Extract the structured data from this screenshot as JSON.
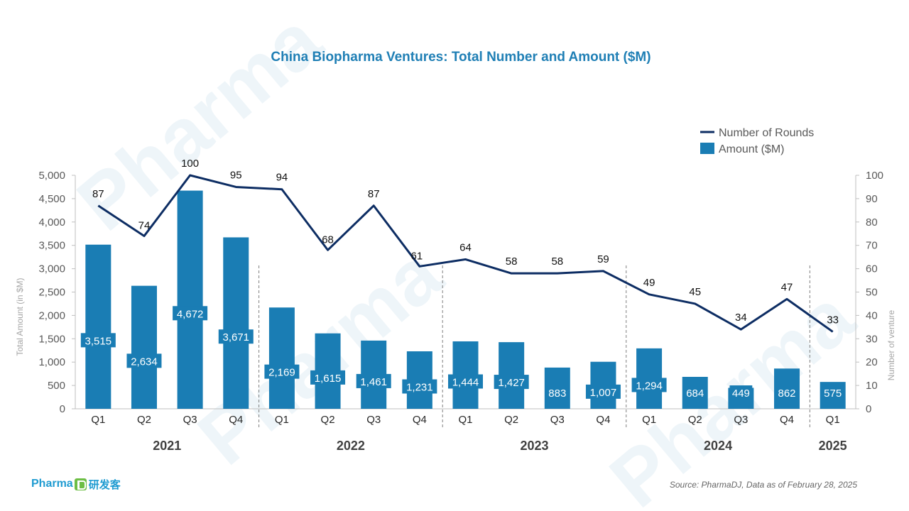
{
  "title": "China Biopharma Ventures: Total Number and Amount ($M)",
  "source": "Source: PharmaDJ, Data as of February 28, 2025",
  "brand": {
    "name": "Pharma",
    "cn": "研发客"
  },
  "colors": {
    "bar": "#1A7DB4",
    "line": "#0D2D63",
    "text": "#333333",
    "axis": "#7F7F7F"
  },
  "chart_data": {
    "type": "bar",
    "title": "China Biopharma Ventures: Total Number and Amount ($M)",
    "categories": [
      "Q1",
      "Q2",
      "Q3",
      "Q4",
      "Q1",
      "Q2",
      "Q3",
      "Q4",
      "Q1",
      "Q2",
      "Q3",
      "Q4",
      "Q1",
      "Q2",
      "Q3",
      "Q4",
      "Q1"
    ],
    "groups": [
      {
        "label": "2021",
        "count": 4
      },
      {
        "label": "2022",
        "count": 4
      },
      {
        "label": "2023",
        "count": 4
      },
      {
        "label": "2024",
        "count": 4
      },
      {
        "label": "2025",
        "count": 1
      }
    ],
    "series": [
      {
        "name": "Amount ($M)",
        "type": "bar",
        "axis": "left",
        "values": [
          3515,
          2634,
          4672,
          3671,
          2169,
          1615,
          1461,
          1231,
          1444,
          1427,
          883,
          1007,
          1294,
          684,
          449,
          862,
          575
        ],
        "labels": [
          "3,515",
          "2,634",
          "4,672",
          "3,671",
          "2,169",
          "1,615",
          "1,461",
          "1,231",
          "1,444",
          "1,427",
          "883",
          "1,007",
          "1,294",
          "684",
          "449",
          "862",
          "575"
        ]
      },
      {
        "name": "Number of Rounds",
        "type": "line",
        "axis": "right",
        "values": [
          87,
          74,
          100,
          95,
          94,
          68,
          87,
          61,
          64,
          58,
          58,
          59,
          49,
          45,
          34,
          47,
          33
        ]
      }
    ],
    "ylabel": "Total Amount (in $M)",
    "y2label": "Number of venture",
    "ylim": [
      0,
      5000
    ],
    "y2lim": [
      0,
      100
    ],
    "yticks": [
      "0",
      "500",
      "1,000",
      "1,500",
      "2,000",
      "2,500",
      "3,000",
      "3,500",
      "4,000",
      "4,500",
      "5,000"
    ],
    "y2ticks": [
      "0",
      "10",
      "20",
      "30",
      "40",
      "50",
      "60",
      "70",
      "80",
      "90",
      "100"
    ],
    "legend": "top-right",
    "grid": false
  }
}
